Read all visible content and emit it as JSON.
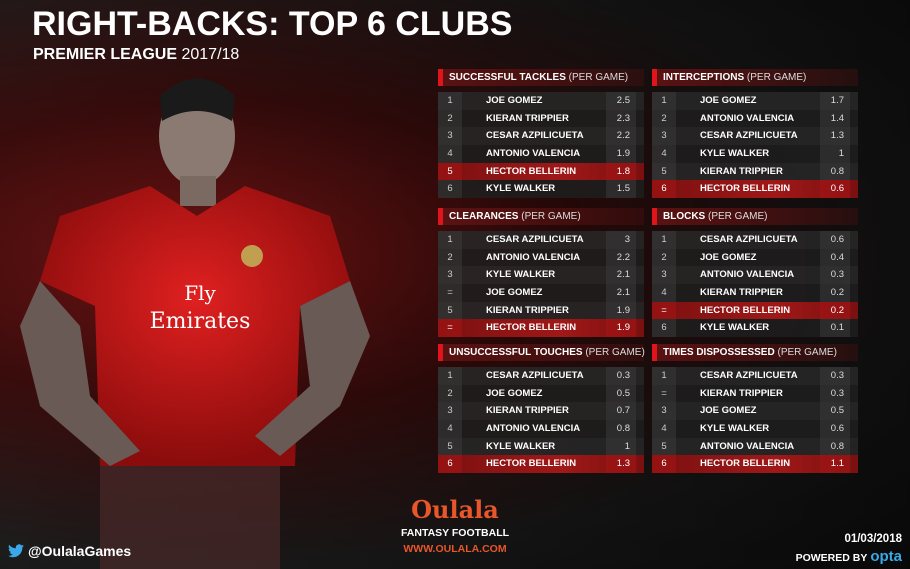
{
  "title": "RIGHT-BACKS: TOP 6 CLUBS",
  "subtitle": {
    "league": "PREMIER LEAGUE",
    "season": "2017/18"
  },
  "shirt": {
    "sponsor_line1": "Fly",
    "sponsor_line2": "Emirates"
  },
  "colors": {
    "accent": "#e0151b",
    "highlight_row": "#a01818",
    "brand_orange": "#e8562a",
    "opta_blue": "#3aa8e8"
  },
  "highlight_player": "HECTOR BELLERIN",
  "tables": [
    {
      "title": "SUCCESSFUL TACKLES",
      "unit": "(PER GAME)",
      "rows": [
        [
          "1",
          "JOE GOMEZ",
          "2.5"
        ],
        [
          "2",
          "KIERAN TRIPPIER",
          "2.3"
        ],
        [
          "3",
          "CESAR AZPILICUETA",
          "2.2"
        ],
        [
          "4",
          "ANTONIO VALENCIA",
          "1.9"
        ],
        [
          "5",
          "HECTOR BELLERIN",
          "1.8"
        ],
        [
          "6",
          "KYLE WALKER",
          "1.5"
        ]
      ]
    },
    {
      "title": "INTERCEPTIONS",
      "unit": "(PER GAME)",
      "rows": [
        [
          "1",
          "JOE GOMEZ",
          "1.7"
        ],
        [
          "2",
          "ANTONIO VALENCIA",
          "1.4"
        ],
        [
          "3",
          "CESAR AZPILICUETA",
          "1.3"
        ],
        [
          "4",
          "KYLE WALKER",
          "1"
        ],
        [
          "5",
          "KIERAN TRIPPIER",
          "0.8"
        ],
        [
          "6",
          "HECTOR BELLERIN",
          "0.6"
        ]
      ]
    },
    {
      "title": "CLEARANCES",
      "unit": "(PER GAME)",
      "rows": [
        [
          "1",
          "CESAR AZPILICUETA",
          "3"
        ],
        [
          "2",
          "ANTONIO VALENCIA",
          "2.2"
        ],
        [
          "3",
          "KYLE WALKER",
          "2.1"
        ],
        [
          "=",
          "JOE GOMEZ",
          "2.1"
        ],
        [
          "5",
          "KIERAN TRIPPIER",
          "1.9"
        ],
        [
          "=",
          "HECTOR BELLERIN",
          "1.9"
        ]
      ]
    },
    {
      "title": "BLOCKS",
      "unit": "(PER GAME)",
      "rows": [
        [
          "1",
          "CESAR AZPILICUETA",
          "0.6"
        ],
        [
          "2",
          "JOE GOMEZ",
          "0.4"
        ],
        [
          "3",
          "ANTONIO VALENCIA",
          "0.3"
        ],
        [
          "4",
          "KIERAN TRIPPIER",
          "0.2"
        ],
        [
          "=",
          "HECTOR BELLERIN",
          "0.2"
        ],
        [
          "6",
          "KYLE WALKER",
          "0.1"
        ]
      ]
    },
    {
      "title": "UNSUCCESSFUL TOUCHES",
      "unit": "(PER GAME)",
      "rows": [
        [
          "1",
          "CESAR AZPILICUETA",
          "0.3"
        ],
        [
          "2",
          "JOE GOMEZ",
          "0.5"
        ],
        [
          "3",
          "KIERAN TRIPPIER",
          "0.7"
        ],
        [
          "4",
          "ANTONIO VALENCIA",
          "0.8"
        ],
        [
          "5",
          "KYLE WALKER",
          "1"
        ],
        [
          "6",
          "HECTOR BELLERIN",
          "1.3"
        ]
      ]
    },
    {
      "title": "TIMES DISPOSSESSED",
      "unit": "(PER GAME)",
      "rows": [
        [
          "1",
          "CESAR AZPILICUETA",
          "0.3"
        ],
        [
          "=",
          "KIERAN TRIPPIER",
          "0.3"
        ],
        [
          "3",
          "JOE GOMEZ",
          "0.5"
        ],
        [
          "4",
          "KYLE WALKER",
          "0.6"
        ],
        [
          "5",
          "ANTONIO VALENCIA",
          "0.8"
        ],
        [
          "6",
          "HECTOR BELLERIN",
          "1.1"
        ]
      ]
    }
  ],
  "footer": {
    "twitter": "@OulalaGames",
    "logo": "Oulala",
    "tagline": "FANTASY FOOTBALL",
    "url": "WWW.OULALA.COM",
    "date": "01/03/2018",
    "powered_by": "POWERED BY",
    "opta": "opta"
  }
}
